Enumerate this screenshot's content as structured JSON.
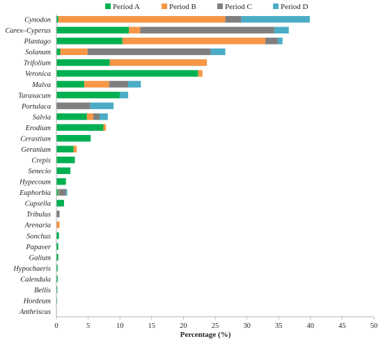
{
  "chart_data": {
    "type": "bar",
    "orientation": "horizontal",
    "stacked": true,
    "categories": [
      "Cynodon",
      "Carex–Cyperus",
      "Plantago",
      "Solanum",
      "Trifolium",
      "Veronica",
      "Malva",
      "Taraxacum",
      "Portulaca",
      "Salvia",
      "Erodium",
      "Cerastium",
      "Geranium",
      "Crepis",
      "Senecio",
      "Hypecoum",
      "Euphorbia",
      "Capsella",
      "Tribulus",
      "Arenaria",
      "Sonchus",
      "Papaver",
      "Galium",
      "Hypochaeris",
      "Calendula",
      "Bellis",
      "Hordeum",
      "Anthriscus"
    ],
    "series": [
      {
        "name": "Period A",
        "color": "#00b050",
        "values": [
          0.3,
          11.4,
          10.4,
          0.6,
          8.4,
          22.3,
          4.4,
          10.0,
          0,
          4.8,
          7.4,
          5.4,
          2.7,
          2.9,
          2.2,
          1.5,
          0.3,
          1.2,
          0,
          0,
          0.4,
          0.3,
          0.3,
          0.2,
          0.2,
          0.15,
          0.1,
          0.05
        ]
      },
      {
        "name": "Period B",
        "color": "#f79646",
        "values": [
          26.3,
          1.8,
          22.5,
          4.3,
          15.3,
          0.7,
          3.9,
          0,
          0,
          1.0,
          0.4,
          0,
          0.5,
          0,
          0,
          0,
          0.1,
          0,
          0,
          0.5,
          0,
          0,
          0,
          0,
          0,
          0,
          0,
          0
        ]
      },
      {
        "name": "Period C",
        "color": "#7f7f7f",
        "values": [
          2.5,
          21.1,
          2.0,
          19.4,
          0,
          0,
          3.0,
          0,
          5.3,
          1.0,
          0,
          0,
          0,
          0,
          0,
          0,
          1.1,
          0,
          0.5,
          0,
          0,
          0,
          0,
          0,
          0,
          0,
          0,
          0
        ]
      },
      {
        "name": "Period D",
        "color": "#4bacc6",
        "values": [
          10.8,
          2.3,
          0.7,
          2.3,
          0,
          0,
          2.0,
          1.3,
          3.7,
          1.3,
          0,
          0,
          0,
          0,
          0,
          0,
          0.2,
          0,
          0,
          0,
          0,
          0,
          0,
          0,
          0,
          0,
          0,
          0
        ]
      }
    ],
    "xlabel": "Percentage (%)",
    "ylabel": "",
    "title": "",
    "xlim": [
      0,
      50
    ],
    "xticks": [
      0,
      5,
      10,
      15,
      20,
      25,
      30,
      35,
      40,
      45,
      50
    ],
    "grid": false,
    "legend_position": "top"
  }
}
